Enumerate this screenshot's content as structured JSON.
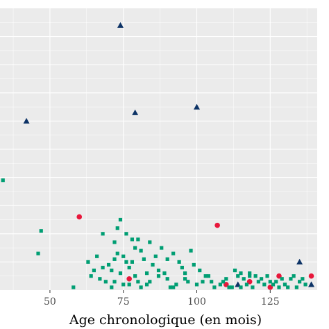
{
  "chart_data": {
    "type": "scatter",
    "title": "",
    "xlabel": "Age chronologique (en mois)",
    "ylabel": "",
    "x_ticks": [
      50,
      75,
      100,
      125
    ],
    "x_tick_labels": [
      "50",
      "75",
      "100",
      "125"
    ],
    "xlim": [
      33,
      141
    ],
    "ylim": [
      0,
      100
    ],
    "grid": true,
    "legend": "none",
    "colors": {
      "panel_background": "#ebebeb",
      "grid_line": "#ffffff",
      "green": "#009e73",
      "red": "#e8173b",
      "navy": "#0d3366"
    },
    "series": [
      {
        "marker": "triangle",
        "color": "#0d3366",
        "points": [
          [
            74,
            94
          ],
          [
            79,
            63
          ],
          [
            42,
            60
          ],
          [
            100,
            65
          ],
          [
            135,
            10
          ],
          [
            139,
            2
          ],
          [
            114,
            2
          ]
        ]
      },
      {
        "marker": "circle",
        "color": "#e8173b",
        "points": [
          [
            60,
            26
          ],
          [
            107,
            23
          ],
          [
            77,
            4
          ],
          [
            110,
            2
          ],
          [
            118,
            3
          ],
          [
            125,
            1
          ],
          [
            128,
            5
          ],
          [
            139,
            5
          ]
        ]
      },
      {
        "marker": "square",
        "color": "#009e73",
        "points": [
          [
            34,
            39
          ],
          [
            47,
            21
          ],
          [
            46,
            13
          ],
          [
            58,
            1
          ],
          [
            68,
            20
          ],
          [
            72,
            17
          ],
          [
            74,
            25
          ],
          [
            78,
            18
          ],
          [
            80,
            18
          ],
          [
            73,
            13
          ],
          [
            75,
            12
          ],
          [
            70,
            9
          ],
          [
            71,
            7
          ],
          [
            74,
            6
          ],
          [
            76,
            10
          ],
          [
            77,
            8
          ],
          [
            79,
            5
          ],
          [
            72,
            3
          ],
          [
            75,
            2
          ],
          [
            80,
            3
          ],
          [
            82,
            11
          ],
          [
            83,
            6
          ],
          [
            85,
            9
          ],
          [
            87,
            5
          ],
          [
            89,
            6
          ],
          [
            90,
            4
          ],
          [
            92,
            13
          ],
          [
            93,
            2
          ],
          [
            95,
            8
          ],
          [
            97,
            3
          ],
          [
            98,
            14
          ],
          [
            100,
            2
          ],
          [
            103,
            5
          ],
          [
            105,
            3
          ],
          [
            109,
            3
          ],
          [
            113,
            7
          ],
          [
            115,
            6
          ],
          [
            116,
            4
          ],
          [
            118,
            6
          ],
          [
            121,
            3
          ],
          [
            124,
            5
          ],
          [
            126,
            2
          ],
          [
            129,
            4
          ],
          [
            131,
            1
          ],
          [
            133,
            5
          ],
          [
            135,
            3
          ],
          [
            65,
            7
          ],
          [
            67,
            4
          ],
          [
            69,
            3
          ],
          [
            71,
            1
          ],
          [
            77,
            2
          ],
          [
            81,
            1
          ],
          [
            84,
            3
          ],
          [
            86,
            12
          ],
          [
            88,
            15
          ],
          [
            91,
            1
          ],
          [
            94,
            10
          ],
          [
            96,
            6
          ],
          [
            101,
            7
          ],
          [
            106,
            1
          ],
          [
            110,
            4
          ],
          [
            112,
            1
          ],
          [
            114,
            5
          ],
          [
            117,
            2
          ],
          [
            119,
            1
          ],
          [
            122,
            4
          ],
          [
            127,
            3
          ],
          [
            130,
            2
          ],
          [
            132,
            4
          ],
          [
            134,
            1
          ],
          [
            63,
            10
          ],
          [
            66,
            12
          ],
          [
            79,
            15
          ],
          [
            84,
            17
          ],
          [
            73,
            22
          ],
          [
            76,
            20
          ],
          [
            81,
            14
          ],
          [
            90,
            11
          ],
          [
            99,
            9
          ],
          [
            104,
            5
          ],
          [
            108,
            2
          ],
          [
            111,
            1
          ],
          [
            120,
            5
          ],
          [
            123,
            2
          ],
          [
            128,
            1
          ],
          [
            136,
            4
          ],
          [
            64,
            5
          ],
          [
            68,
            8
          ],
          [
            72,
            11
          ],
          [
            78,
            10
          ],
          [
            83,
            2
          ],
          [
            87,
            7
          ],
          [
            92,
            1
          ],
          [
            96,
            4
          ],
          [
            102,
            3
          ],
          [
            115,
            1
          ],
          [
            118,
            5
          ],
          [
            125,
            3
          ],
          [
            137,
            2
          ]
        ]
      }
    ]
  }
}
